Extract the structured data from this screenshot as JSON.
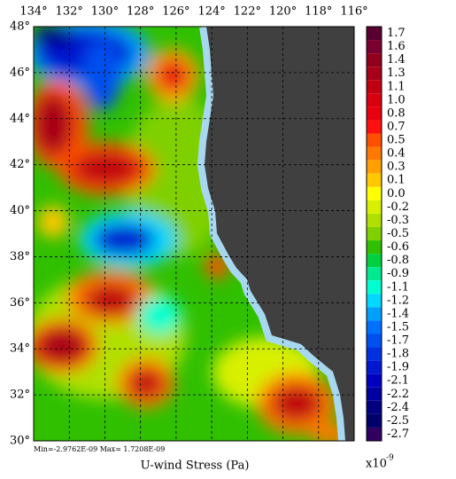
{
  "map": {
    "title": "U-wind Stress (Pa)",
    "stats": "Min=-2.9762E-09   Max= 1.7208E-09",
    "scale": {
      "base": "x10",
      "exponent": "-9"
    },
    "lon_ticks": [
      {
        "value": 134,
        "label": "134°"
      },
      {
        "value": 132,
        "label": "132°"
      },
      {
        "value": 130,
        "label": "130°"
      },
      {
        "value": 128,
        "label": "128°"
      },
      {
        "value": 126,
        "label": "126°"
      },
      {
        "value": 124,
        "label": "124°"
      },
      {
        "value": 122,
        "label": "122°"
      },
      {
        "value": 120,
        "label": "120°"
      },
      {
        "value": 118,
        "label": "118°"
      },
      {
        "value": 116,
        "label": "116°"
      }
    ],
    "lat_ticks": [
      {
        "value": 48,
        "label": "48°"
      },
      {
        "value": 46,
        "label": "46°"
      },
      {
        "value": 44,
        "label": "44°"
      },
      {
        "value": 42,
        "label": "42°"
      },
      {
        "value": 40,
        "label": "40°"
      },
      {
        "value": 38,
        "label": "38°"
      },
      {
        "value": 36,
        "label": "36°"
      },
      {
        "value": 34,
        "label": "34°"
      },
      {
        "value": 32,
        "label": "32°"
      },
      {
        "value": 30,
        "label": "30°"
      }
    ],
    "xlim": [
      134,
      116
    ],
    "ylim": [
      30,
      48
    ],
    "colorbar": [
      {
        "value": 1.7,
        "label": "1.7",
        "color": "#5a0030"
      },
      {
        "value": 1.6,
        "label": "1.6",
        "color": "#7a0030"
      },
      {
        "value": 1.4,
        "label": "1.4",
        "color": "#90001c"
      },
      {
        "value": 1.3,
        "label": "1.3",
        "color": "#a80018"
      },
      {
        "value": 1.1,
        "label": "1.1",
        "color": "#c00010"
      },
      {
        "value": 1.0,
        "label": "1.0",
        "color": "#d80010"
      },
      {
        "value": 0.8,
        "label": "0.8",
        "color": "#e80010"
      },
      {
        "value": 0.7,
        "label": "0.7",
        "color": "#ff1010"
      },
      {
        "value": 0.5,
        "label": "0.5",
        "color": "#ff5000"
      },
      {
        "value": 0.4,
        "label": "0.4",
        "color": "#ff7800"
      },
      {
        "value": 0.3,
        "label": "0.3",
        "color": "#ffa000"
      },
      {
        "value": 0.1,
        "label": "0.1",
        "color": "#ffc800"
      },
      {
        "value": 0.0,
        "label": "0.0",
        "color": "#ffff00"
      },
      {
        "value": -0.2,
        "label": "-0.2",
        "color": "#d8f000"
      },
      {
        "value": -0.3,
        "label": "-0.3",
        "color": "#b0e000"
      },
      {
        "value": -0.5,
        "label": "-0.5",
        "color": "#80d000"
      },
      {
        "value": -0.6,
        "label": "-0.6",
        "color": "#30c000"
      },
      {
        "value": -0.8,
        "label": "-0.8",
        "color": "#00d040"
      },
      {
        "value": -0.9,
        "label": "-0.9",
        "color": "#00e890"
      },
      {
        "value": -1.1,
        "label": "-1.1",
        "color": "#00ffd0"
      },
      {
        "value": -1.2,
        "label": "-1.2",
        "color": "#00d8ff"
      },
      {
        "value": -1.4,
        "label": "-1.4",
        "color": "#00a0ff"
      },
      {
        "value": -1.5,
        "label": "-1.5",
        "color": "#0070ff"
      },
      {
        "value": -1.7,
        "label": "-1.7",
        "color": "#0050f0"
      },
      {
        "value": -1.8,
        "label": "-1.8",
        "color": "#0030e0"
      },
      {
        "value": -1.9,
        "label": "-1.9",
        "color": "#0018d0"
      },
      {
        "value": -2.1,
        "label": "-2.1",
        "color": "#0000c0"
      },
      {
        "value": -2.2,
        "label": "-2.2",
        "color": "#0000a0"
      },
      {
        "value": -2.4,
        "label": "-2.4",
        "color": "#000080"
      },
      {
        "value": -2.5,
        "label": "-2.5",
        "color": "#000068"
      },
      {
        "value": -2.7,
        "label": "-2.7",
        "color": "#300060"
      }
    ]
  }
}
